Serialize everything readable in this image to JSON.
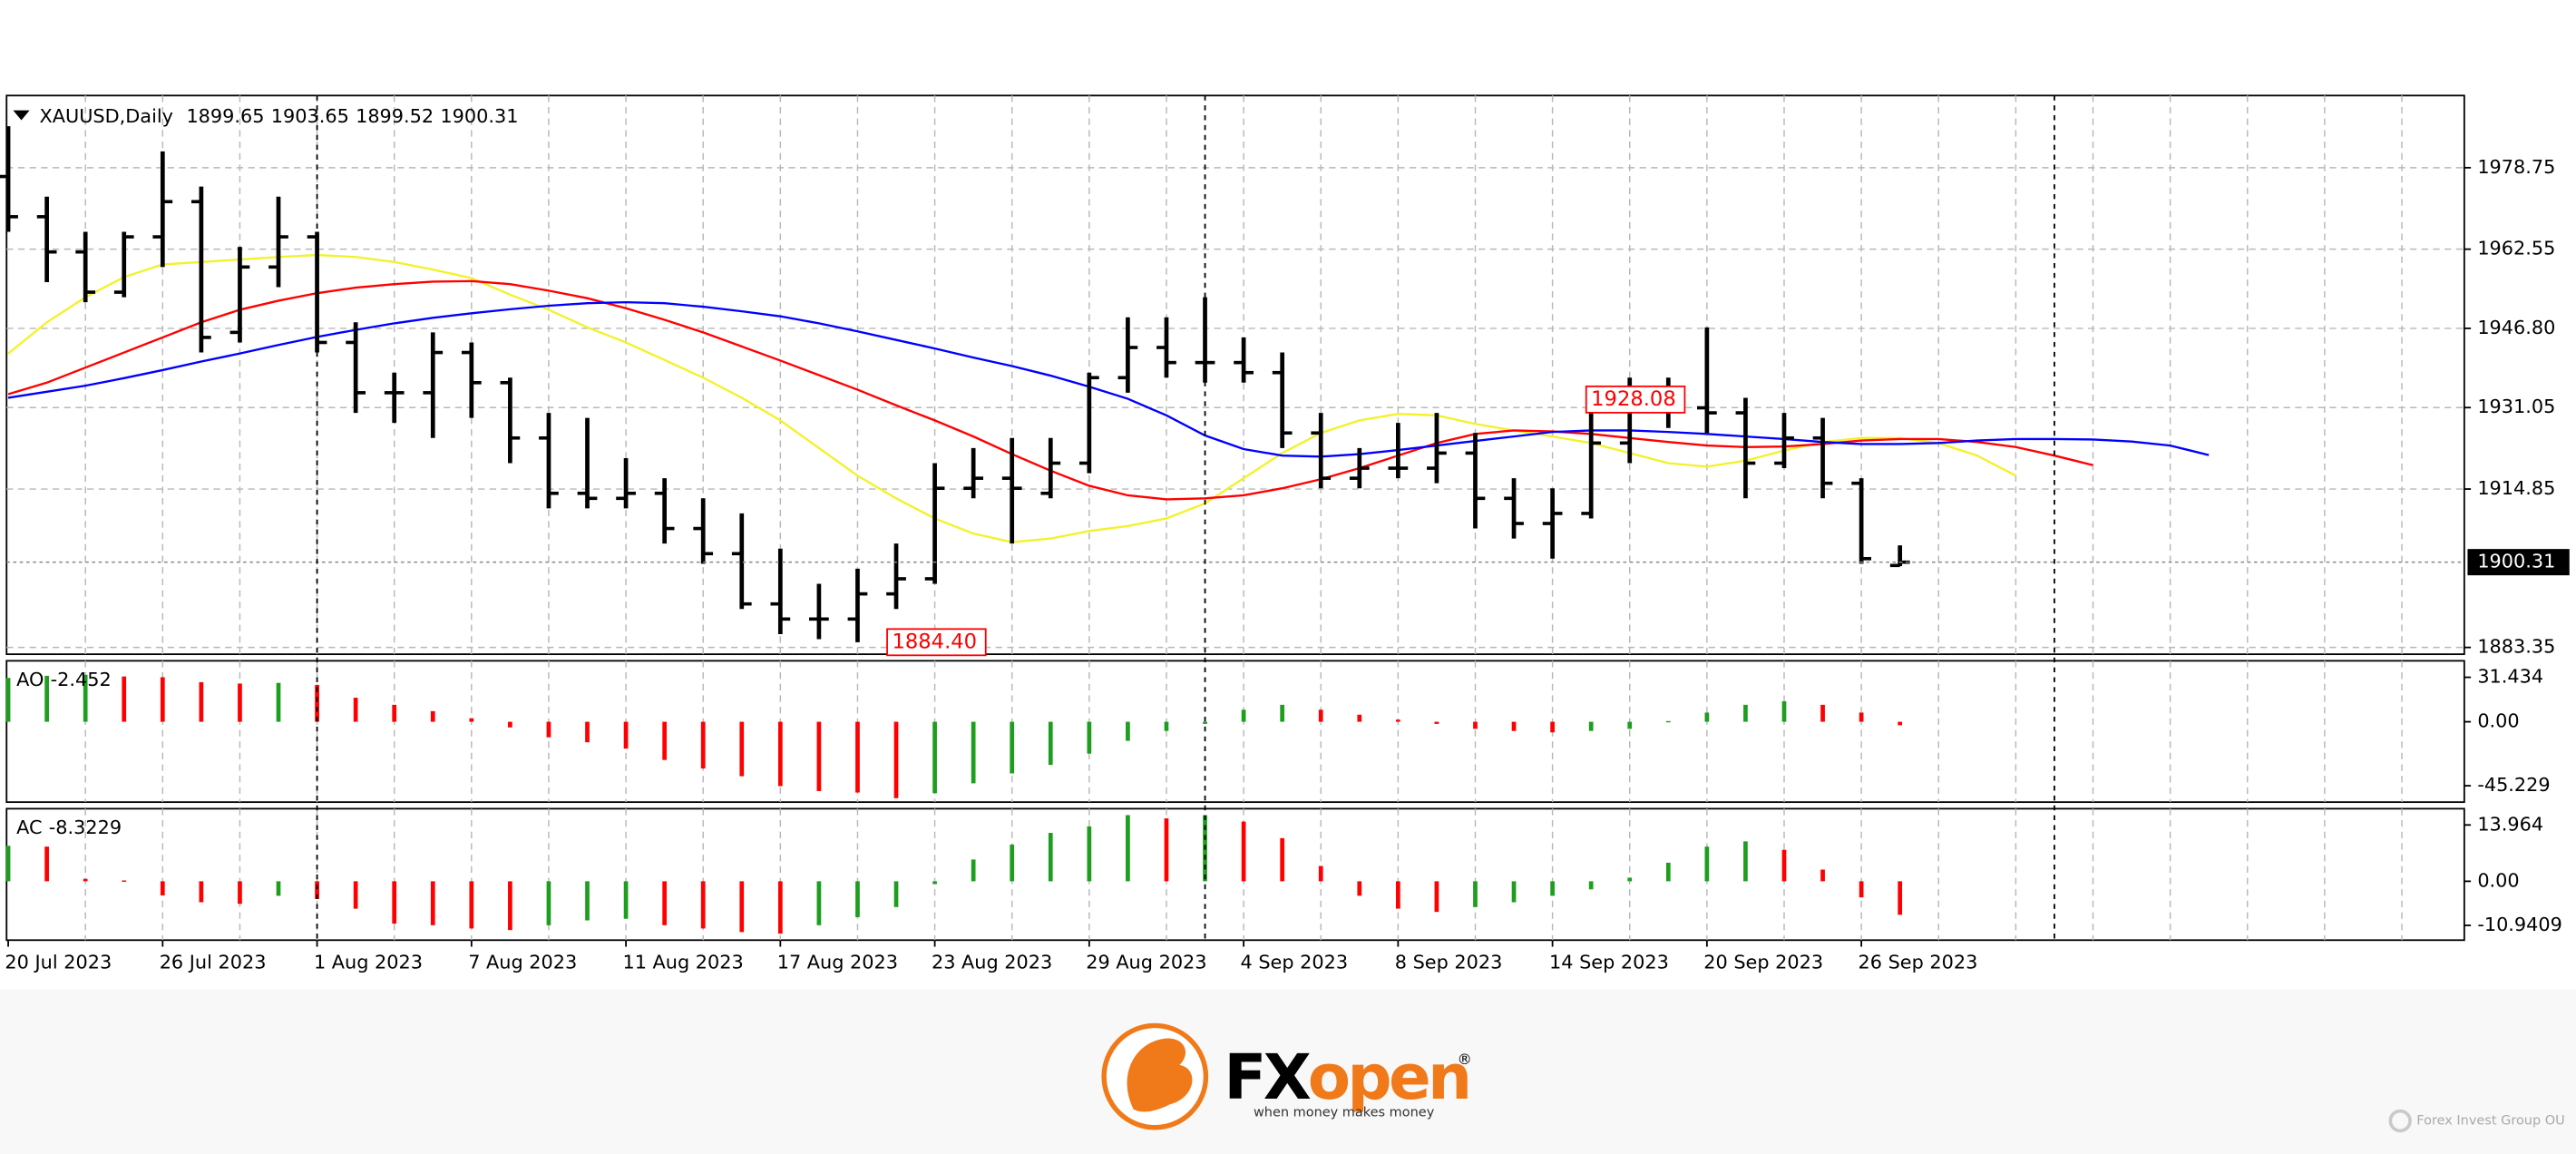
{
  "chart_data": [
    {
      "type": "ohlc",
      "title": "XAUUSD,Daily",
      "header_values": [
        1899.65,
        1903.65,
        1899.52,
        1900.31
      ],
      "categories": [
        "20 Jul 2023",
        null,
        null,
        null,
        "26 Jul 2023",
        null,
        null,
        null,
        "1 Aug 2023",
        null,
        null,
        null,
        "7 Aug 2023",
        null,
        null,
        null,
        "11 Aug 2023",
        null,
        null,
        null,
        "17 Aug 2023",
        null,
        null,
        null,
        "23 Aug 2023",
        null,
        null,
        null,
        "29 Aug 2023",
        null,
        null,
        null,
        "4 Sep 2023",
        null,
        null,
        null,
        "8 Sep 2023",
        null,
        null,
        null,
        "14 Sep 2023",
        null,
        null,
        null,
        "20 Sep 2023",
        null,
        null,
        null,
        "26 Sep 2023",
        null,
        null,
        null,
        null,
        null,
        null,
        null,
        null,
        null
      ],
      "open": [
        1977,
        1969,
        1962,
        1954,
        1965,
        1972,
        1946,
        1959,
        1965,
        1944,
        1934,
        1934,
        1942,
        1936,
        1925,
        1914,
        1913,
        1914,
        1907,
        1902,
        1892,
        1889,
        1889,
        1894,
        1897,
        1915,
        1917,
        1914,
        1920,
        1937,
        1943,
        1940,
        1940,
        1938,
        1926,
        1917,
        1919,
        1919,
        1922,
        1913,
        1908,
        1910,
        1924,
        1934,
        1931,
        1930,
        1920,
        1925,
        1916,
        1899.65,
        null,
        null,
        null,
        null,
        null,
        null,
        null,
        null
      ],
      "high": [
        1987,
        1973,
        1966,
        1966,
        1982,
        1975,
        1963,
        1973,
        1966,
        1948,
        1938,
        1946,
        1944,
        1937,
        1930,
        1929,
        1921,
        1917,
        1913,
        1910,
        1903,
        1896,
        1899,
        1904,
        1920,
        1923,
        1925,
        1925,
        1938,
        1949,
        1949,
        1953,
        1945,
        1942,
        1930,
        1923,
        1928,
        1930,
        1926,
        1917,
        1915,
        1930,
        1937,
        1937,
        1947,
        1933,
        1930,
        1929,
        1917,
        1903.65,
        null,
        null,
        null,
        null,
        null,
        null,
        null,
        null
      ],
      "low": [
        1966,
        1956,
        1952,
        1953,
        1959,
        1942,
        1944,
        1955,
        1942,
        1930,
        1928,
        1925,
        1929,
        1920,
        1911,
        1911,
        1911,
        1904,
        1900,
        1891,
        1886,
        1885,
        1884.4,
        1891,
        1896,
        1913,
        1904,
        1913,
        1918,
        1934,
        1937,
        1936,
        1936,
        1923,
        1915,
        1915,
        1917,
        1916,
        1907,
        1905,
        1901,
        1909,
        1920,
        1927,
        1926,
        1913,
        1919,
        1913,
        1900,
        1899.52,
        null,
        null,
        null,
        null,
        null,
        null,
        null,
        null
      ],
      "close": [
        1969,
        1962,
        1954,
        1965,
        1972,
        1945,
        1959,
        1965,
        1944,
        1934,
        1934,
        1942,
        1936,
        1925,
        1914,
        1913,
        1914,
        1907,
        1902,
        1892,
        1889,
        1889,
        1894,
        1897,
        1915,
        1917,
        1915,
        1920,
        1937,
        1943,
        1940,
        1940,
        1938,
        1926,
        1917,
        1919,
        1919,
        1922,
        1913,
        1908,
        1910,
        1924,
        1934,
        1931,
        1930,
        1920,
        1925,
        1916,
        1901,
        1900.31,
        null,
        null,
        null,
        null,
        null,
        null,
        null,
        null
      ],
      "bar_color": "#000000",
      "lines": [
        {
          "color": "#f2f22a",
          "values": [
            1941.8,
            1948,
            1953,
            1957,
            1959.5,
            1960,
            1960.5,
            1961,
            1961.4,
            1961,
            1960,
            1958.5,
            1956.8,
            1953.5,
            1950.5,
            1947,
            1944,
            1940.5,
            1937,
            1933,
            1928.5,
            1923,
            1917.5,
            1913,
            1909,
            1906,
            1904.3,
            1905,
            1906.5,
            1907.5,
            1909,
            1912,
            1917,
            1922,
            1926,
            1928.5,
            1929.8,
            1929.5,
            1927.8,
            1926.5,
            1925.3,
            1924,
            1922,
            1920,
            1919.3,
            1920.5,
            1922.5,
            1924.2,
            1925,
            1925,
            1924,
            1921.5,
            1917.5,
            null,
            null,
            null,
            null,
            null
          ]
        },
        {
          "color": "#ff0000",
          "values": [
            1933.7,
            1936,
            1939,
            1942,
            1945,
            1948,
            1950.5,
            1952.3,
            1953.8,
            1954.9,
            1955.6,
            1956.1,
            1956.2,
            1955.6,
            1954.3,
            1952.8,
            1950.8,
            1948.5,
            1946,
            1943.2,
            1940.4,
            1937.5,
            1934.6,
            1931.5,
            1928.5,
            1925.3,
            1921.8,
            1918.5,
            1915.5,
            1913.6,
            1912.8,
            1913,
            1913.6,
            1915,
            1916.8,
            1919,
            1921.5,
            1924,
            1925.8,
            1926.5,
            1926.3,
            1925.8,
            1925,
            1924.2,
            1923.5,
            1923.2,
            1923.3,
            1923.8,
            1924.5,
            1924.8,
            1924.8,
            1924.2,
            1923.2,
            1921.5,
            1919.6,
            null,
            null,
            null
          ]
        },
        {
          "color": "#0000ff",
          "values": [
            1933,
            1934.2,
            1935.4,
            1936.9,
            1938.5,
            1940.2,
            1941.8,
            1943.5,
            1945.1,
            1946.5,
            1947.8,
            1948.9,
            1949.8,
            1950.6,
            1951.3,
            1951.8,
            1952,
            1951.8,
            1951.1,
            1950.2,
            1949.2,
            1947.8,
            1946.2,
            1944.5,
            1942.8,
            1941,
            1939.3,
            1937.4,
            1935.2,
            1932.8,
            1929.5,
            1925.5,
            1922.8,
            1921.5,
            1921.3,
            1921.8,
            1922.6,
            1923.5,
            1924.4,
            1925.3,
            1926.2,
            1926.5,
            1926.5,
            1926.2,
            1925.8,
            1925.3,
            1924.8,
            1924.2,
            1923.8,
            1923.8,
            1924,
            1924.5,
            1924.8,
            1924.8,
            1924.7,
            1924.3,
            1923.5,
            1921.6
          ]
        }
      ],
      "annotations": [
        {
          "value": 1884.4,
          "label": "1884.40",
          "color": "#ff0000"
        },
        {
          "value": 1928.08,
          "label": "1928.08",
          "color": "#ff0000"
        }
      ],
      "ylim": [
        1882.0,
        1993.1
      ],
      "yticks": [
        1883.35,
        1914.85,
        1931.05,
        {
          "value": 1946.8,
          "label": "1946.80"
        },
        1962.55,
        1978.75
      ],
      "grid": true
    },
    {
      "type": "bar",
      "title": "AO",
      "values": [
        31.0,
        32.5,
        33.2,
        32.0,
        31.5,
        28.0,
        27.0,
        27.5,
        26.0,
        17.0,
        12.0,
        7.5,
        2.5,
        -4.0,
        -11.0,
        -14.5,
        -19.0,
        -27.0,
        -33.0,
        -38.5,
        -45.5,
        -49.0,
        -50.0,
        -54.0,
        -50.5,
        -43.5,
        -36.5,
        -30.5,
        -22.5,
        -13.5,
        -6.5,
        -1.5,
        8.5,
        12.0,
        8.5,
        5.0,
        1.5,
        -1.5,
        -5.0,
        -6.5,
        -7.5,
        -6.5,
        -5.0,
        0.5,
        6.5,
        12.0,
        14.5,
        12.0,
        6.5,
        -2.452,
        null,
        null,
        null,
        null,
        null,
        null,
        null,
        null
      ],
      "up_color": "#1e9e1e",
      "down_color": "#ff0000",
      "ylim": [
        -56.8,
        43.1
      ],
      "yticks": [
        31.434,
        {
          "value": 0,
          "label": "0.00"
        },
        -45.229
      ]
    },
    {
      "type": "bar",
      "title": "AC",
      "values": [
        8.8,
        8.6,
        0.6,
        0.2,
        -3.5,
        -5.2,
        -5.6,
        -3.6,
        -4.4,
        -6.8,
        -10.5,
        -10.9,
        -11.7,
        -12.1,
        -10.9,
        -9.7,
        -9.3,
        -10.9,
        -11.7,
        -12.6,
        -13.0,
        -10.9,
        -8.9,
        -6.4,
        -0.7,
        5.4,
        9.1,
        12.0,
        13.6,
        16.4,
        15.6,
        16.4,
        14.8,
        10.7,
        3.8,
        -3.6,
        -6.8,
        -7.6,
        -6.4,
        -5.2,
        -3.6,
        -2.0,
        0.9,
        4.6,
        8.6,
        9.9,
        7.8,
        2.9,
        -4.0,
        -8.3229,
        null,
        null,
        null,
        null,
        null,
        null,
        null,
        null
      ],
      "up_color": "#1e9e1e",
      "down_color": "#ff0000",
      "ylim": [
        -14.6,
        18.0
      ],
      "yticks": [
        13.964,
        {
          "value": 0,
          "label": "0.00"
        },
        -10.9409
      ]
    }
  ],
  "footer": {
    "brand_fx": "FX",
    "brand_open": "open",
    "registered": "®",
    "tagline": "when money makes money",
    "company": "Forex Invest Group OU"
  }
}
